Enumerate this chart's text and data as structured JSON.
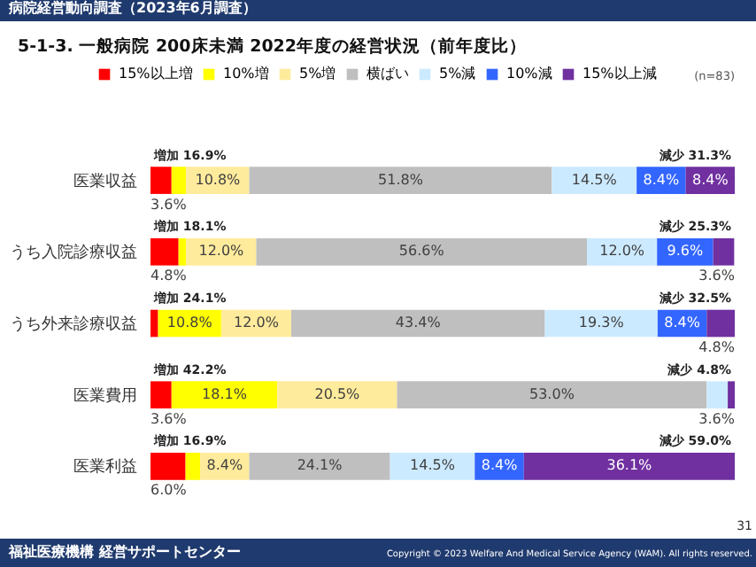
{
  "chart_data": {
    "type": "bar",
    "orientation": "horizontal",
    "stacked": true,
    "title": "5-1-3.  一般病院 200床未満  2022年度の経営状況（前年度比）",
    "categories": [
      "医業収益",
      "うち入院診療収益",
      "うち外来診療収益",
      "医業費用",
      "医業利益"
    ],
    "xlim": [
      0,
      100
    ],
    "tick_labels": "y",
    "legend": "top",
    "series": [
      {
        "name": "15%以上増",
        "color": "#ff0000",
        "values": [
          3.6,
          4.8,
          1.3,
          3.6,
          6.0
        ],
        "value_labels": [
          "3.6%",
          "4.8%",
          null,
          "3.6%",
          "6.0%"
        ]
      },
      {
        "name": "10%増",
        "color": "#ffff00",
        "values": [
          2.5,
          1.3,
          10.8,
          18.1,
          2.5
        ],
        "value_labels": [
          null,
          null,
          "10.8%",
          "18.1%",
          null
        ]
      },
      {
        "name": "5%増",
        "color": "#ffeb9c",
        "values": [
          10.8,
          12.0,
          12.0,
          20.5,
          8.4
        ],
        "value_labels": [
          "10.8%",
          "12.0%",
          "12.0%",
          "20.5%",
          "8.4%"
        ]
      },
      {
        "name": "横ばい",
        "color": "#bfbfbf",
        "values": [
          51.8,
          56.6,
          43.4,
          53.0,
          24.1
        ],
        "value_labels": [
          "51.8%",
          "56.6%",
          "43.4%",
          "53.0%",
          "24.1%"
        ]
      },
      {
        "name": "5%減",
        "color": "#cceaff",
        "values": [
          14.5,
          12.0,
          19.3,
          3.6,
          14.5
        ],
        "value_labels": [
          "14.5%",
          "12.0%",
          "19.3%",
          "3.6%",
          "14.5%"
        ]
      },
      {
        "name": "10%減",
        "color": "#3366ff",
        "values": [
          8.4,
          9.6,
          8.4,
          0,
          8.4
        ],
        "value_labels": [
          "8.4%",
          "9.6%",
          "8.4%",
          null,
          "8.4%"
        ]
      },
      {
        "name": "15%以上減",
        "color": "#7030a0",
        "values": [
          8.4,
          3.6,
          4.8,
          1.2,
          36.1
        ],
        "value_labels": [
          "8.4%",
          "3.6%",
          "4.8%",
          null,
          "36.1%"
        ]
      }
    ],
    "annotations": [
      "病院経営動向調査（2023年6月調査）",
      "(n=83)",
      "福祉医療機構 経営サポートセンター",
      "Copyright © 2023 Welfare And Medical Service Agency (WAM). All rights reserved.",
      "31",
      "増加 16.9%",
      "減少 31.3%",
      "増加 18.1%",
      "減少 25.3%",
      "増加 24.1%",
      "減少 32.5%",
      "増加 42.2%",
      "減少 4.8%",
      "増加 16.9%",
      "減少 59.0%"
    ]
  }
}
